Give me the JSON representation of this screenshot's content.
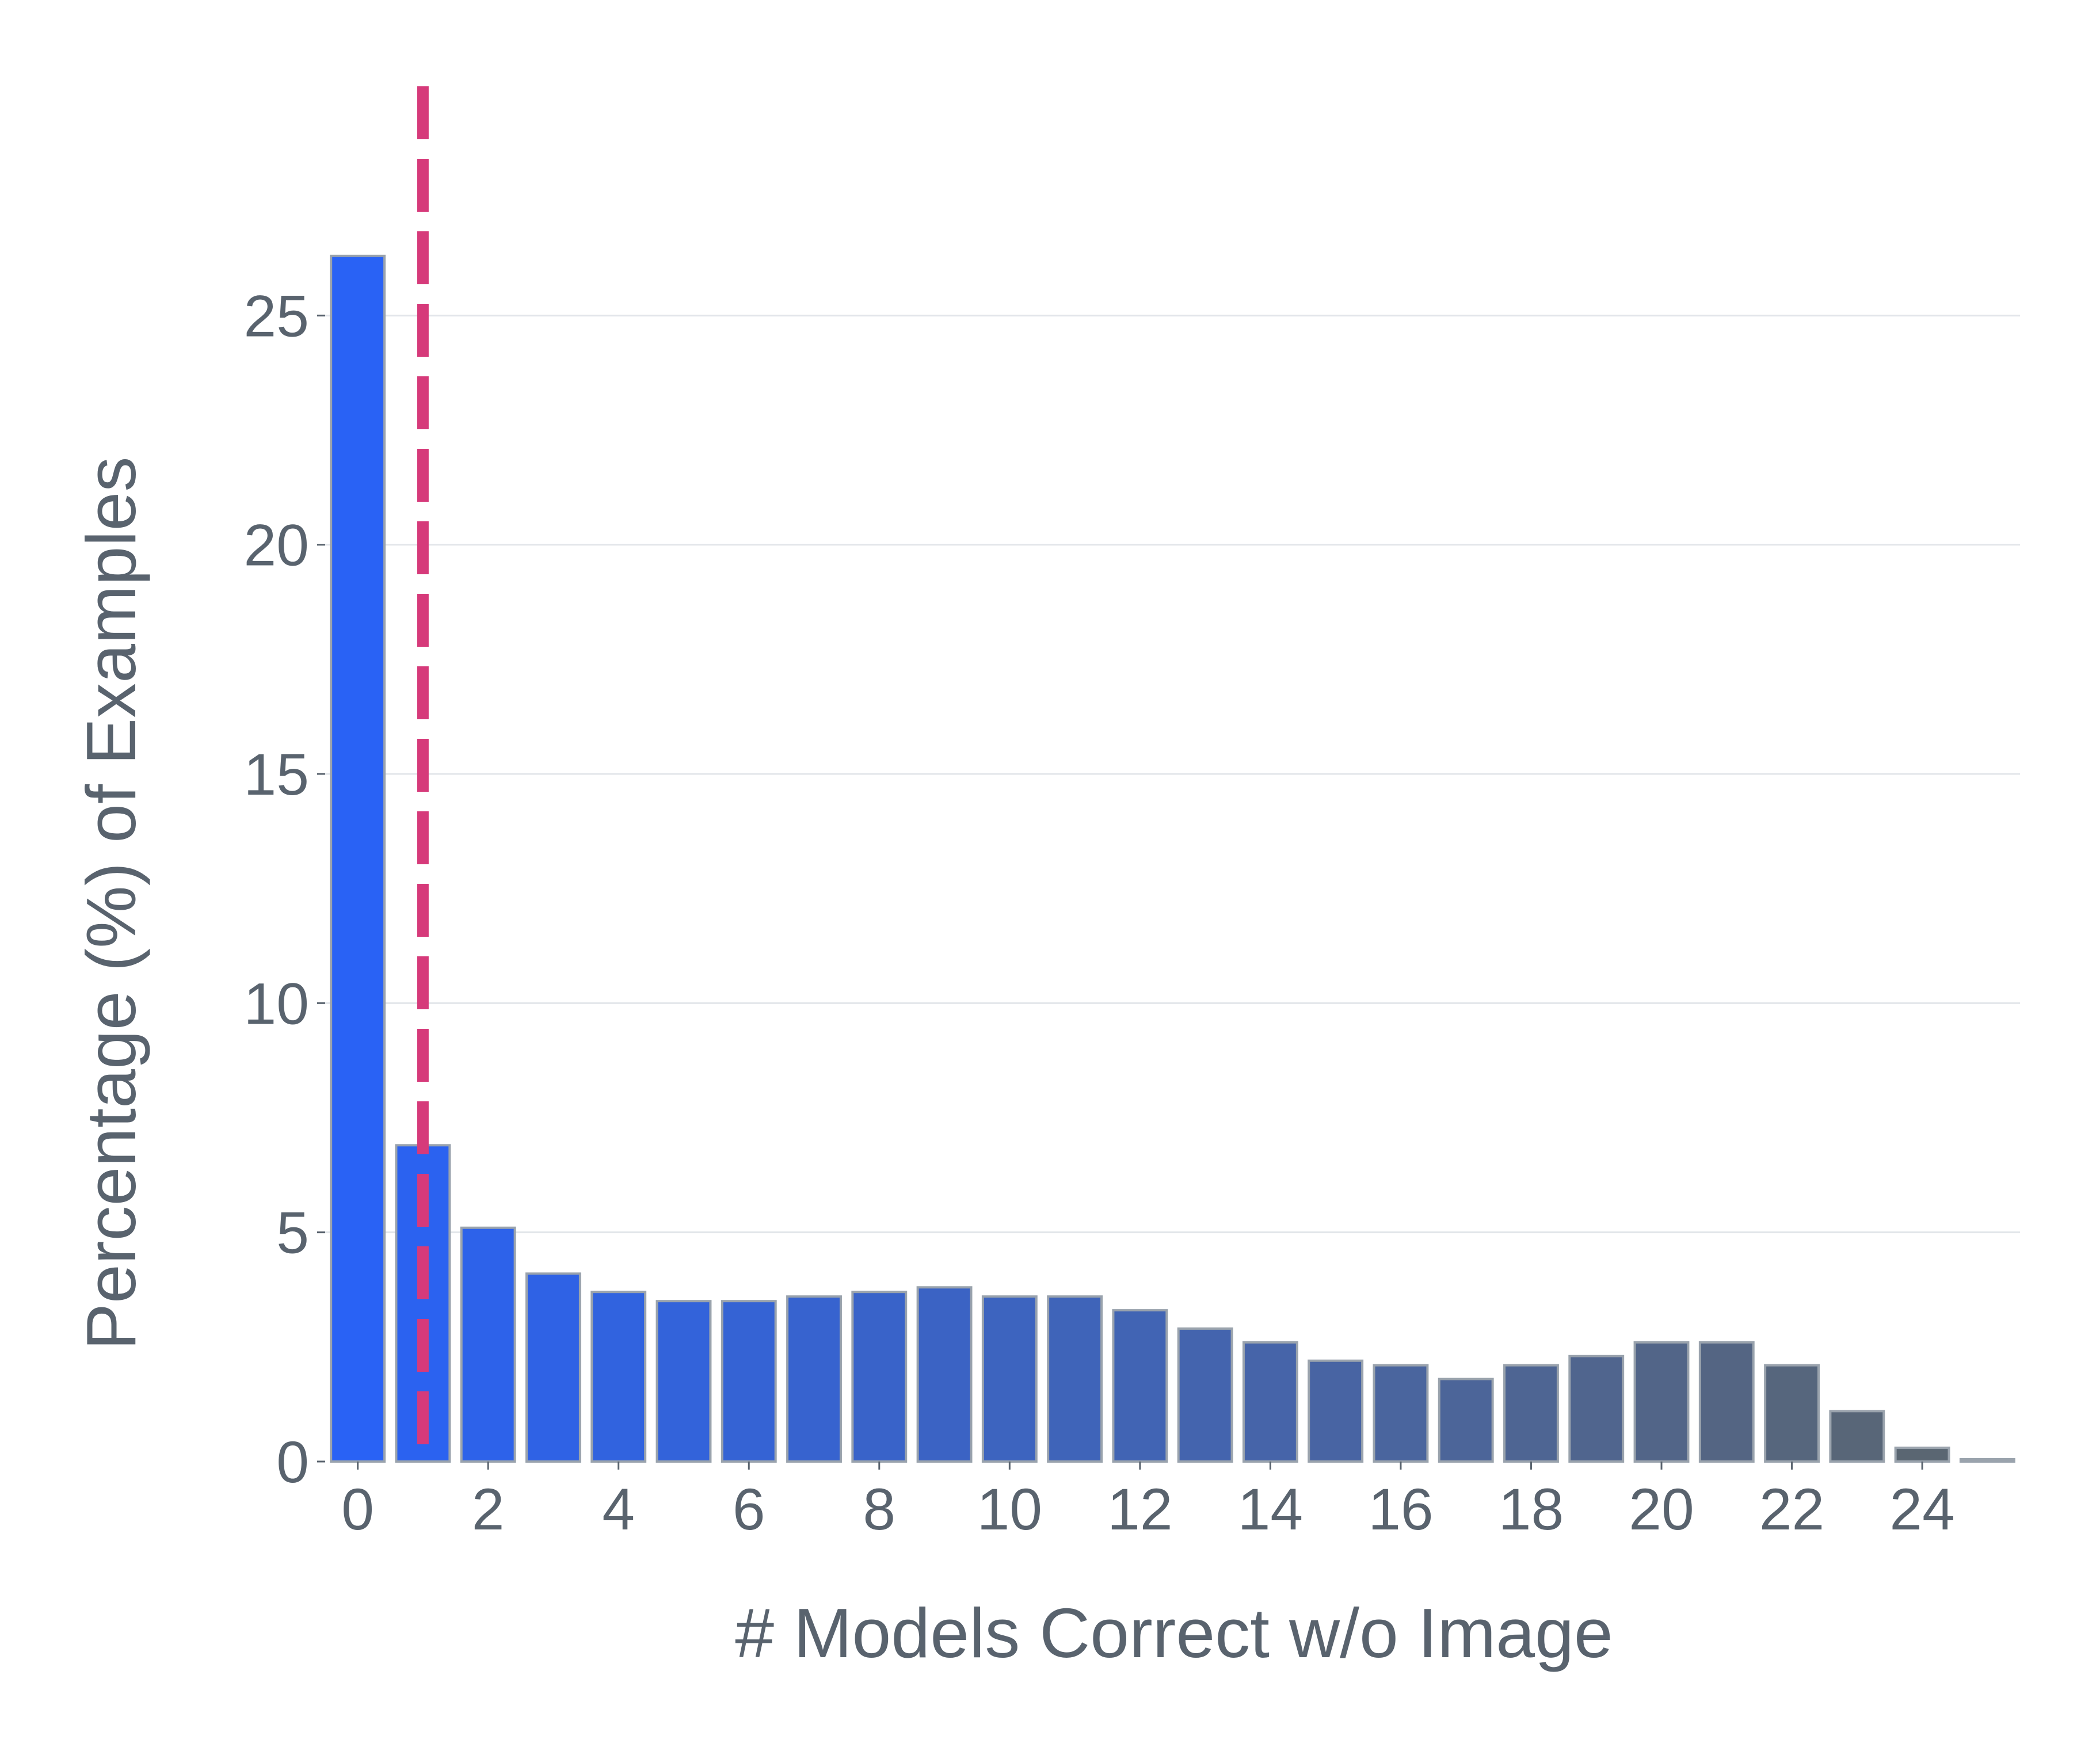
{
  "chart_data": {
    "type": "bar",
    "title": "",
    "xlabel": "# Models Correct w/o Image",
    "ylabel": "Percentage (%) of Examples",
    "x": [
      0,
      1,
      2,
      3,
      4,
      5,
      6,
      7,
      8,
      9,
      10,
      11,
      12,
      13,
      14,
      15,
      16,
      17,
      18,
      19,
      20,
      21,
      22,
      23,
      24,
      25
    ],
    "values": [
      26.3,
      6.9,
      5.1,
      4.1,
      3.7,
      3.5,
      3.5,
      3.6,
      3.7,
      3.8,
      3.6,
      3.6,
      3.3,
      2.9,
      2.6,
      2.2,
      2.1,
      1.8,
      2.1,
      2.3,
      2.6,
      2.6,
      2.1,
      1.1,
      0.3,
      0.05
    ],
    "xticks": [
      "0",
      "2",
      "4",
      "6",
      "8",
      "10",
      "12",
      "14",
      "16",
      "18",
      "20",
      "22",
      "24"
    ],
    "yticks": [
      "0",
      "5",
      "10",
      "15",
      "20",
      "25"
    ],
    "ylim": [
      0,
      30
    ],
    "xlim": [
      -0.5,
      25.5
    ],
    "grid": "horizontal",
    "reference_line": {
      "orientation": "vertical",
      "x": 1,
      "style": "dashed",
      "color": "#d63a7a"
    },
    "bar_color_start": "#2962f5",
    "bar_color_end": "#5c666d",
    "bar_edge_color": "#9aa3ad",
    "axis_color": "#59636e",
    "grid_color": "#e3e6ea"
  }
}
